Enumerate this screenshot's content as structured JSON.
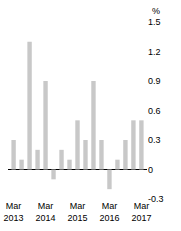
{
  "chart_data": {
    "type": "bar",
    "ylabel": "%",
    "categories": [
      "Mar 2013",
      null,
      null,
      null,
      "Mar 2014",
      null,
      null,
      null,
      "Mar 2015",
      null,
      null,
      null,
      "Mar 2016",
      null,
      null,
      null,
      "Mar 2017"
    ],
    "values": [
      0.3,
      0.1,
      1.3,
      0.2,
      0.9,
      -0.1,
      0.2,
      0.1,
      0.5,
      0.3,
      0.9,
      0.3,
      -0.2,
      0.1,
      0.3,
      0.5,
      0.5
    ],
    "color": "#c8c8c8",
    "ylim": [
      -0.3,
      1.5
    ],
    "yticks": [
      -0.3,
      0,
      0.3,
      0.6,
      0.9,
      1.2,
      1.5
    ],
    "grid": false
  }
}
